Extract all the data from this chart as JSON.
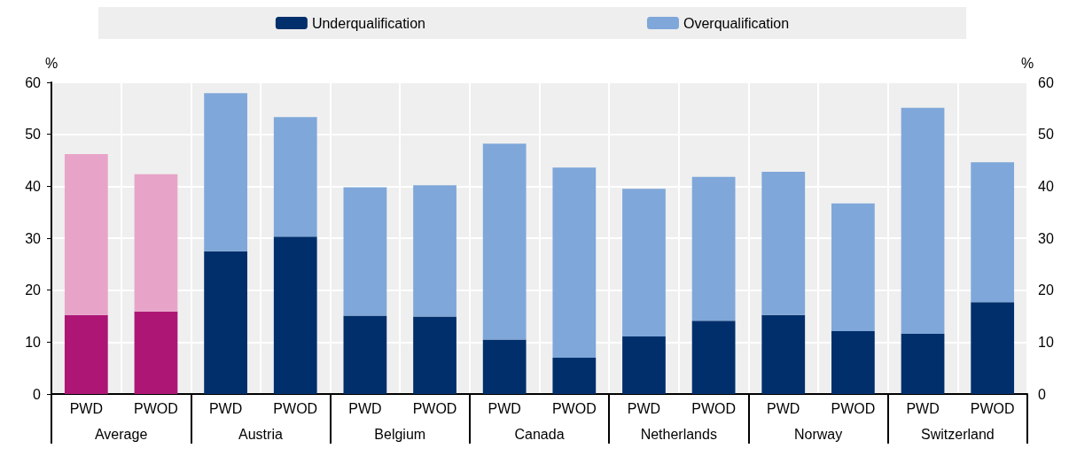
{
  "chart_data": {
    "type": "bar",
    "stacked": true,
    "categories": [
      "PWD",
      "PWOD",
      "PWD",
      "PWOD",
      "PWD",
      "PWOD",
      "PWD",
      "PWOD",
      "PWD",
      "PWOD",
      "PWD",
      "PWOD",
      "PWD",
      "PWOD"
    ],
    "annotations": [
      "Average",
      "Austria",
      "Belgium",
      "Canada",
      "Netherlands",
      "Norway",
      "Switzerland"
    ],
    "series": [
      {
        "name": "Underqualification",
        "color": "#002f6c",
        "colors": [
          "#ad1675",
          "#ad1675",
          "#002f6c",
          "#002f6c",
          "#002f6c",
          "#002f6c",
          "#002f6c",
          "#002f6c",
          "#002f6c",
          "#002f6c",
          "#002f6c",
          "#002f6c",
          "#002f6c",
          "#002f6c"
        ],
        "values": [
          15.2,
          15.9,
          27.5,
          30.3,
          15.1,
          14.9,
          10.5,
          7.0,
          11.1,
          14.1,
          15.2,
          12.1,
          11.6,
          17.7
        ]
      },
      {
        "name": "Overqualification",
        "color": "#7fa7d9",
        "colors": [
          "#e8a4c8",
          "#e8a4c8",
          "#7fa7d9",
          "#7fa7d9",
          "#7fa7d9",
          "#7fa7d9",
          "#7fa7d9",
          "#7fa7d9",
          "#7fa7d9",
          "#7fa7d9",
          "#7fa7d9",
          "#7fa7d9",
          "#7fa7d9",
          "#7fa7d9"
        ],
        "values": [
          31.0,
          26.4,
          30.4,
          23.0,
          24.7,
          25.3,
          37.7,
          36.6,
          28.4,
          27.7,
          27.6,
          24.6,
          43.5,
          26.9
        ]
      }
    ],
    "ylabel": "%",
    "y2label": "%",
    "ylim": [
      0,
      60
    ],
    "yticks": [
      0,
      10,
      20,
      30,
      40,
      50,
      60
    ],
    "y2lim": [
      0,
      60
    ],
    "y2ticks": [
      0,
      10,
      20,
      30,
      40,
      50,
      60
    ],
    "grid": true,
    "legend": "top"
  }
}
